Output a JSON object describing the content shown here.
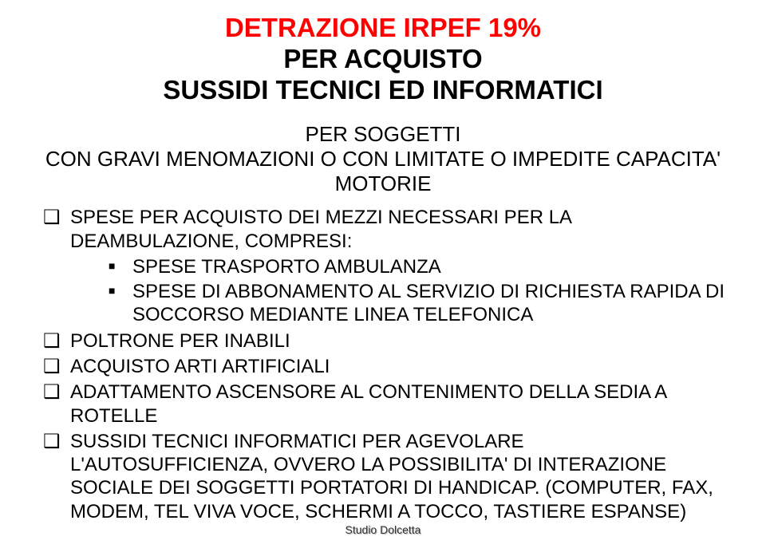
{
  "colors": {
    "red": "#ff0000",
    "black": "#000000",
    "footer_shadow": "#b9b9b9",
    "footer_front": "#333333",
    "background": "#ffffff"
  },
  "title": {
    "line1": "DETRAZIONE IRPEF 19%",
    "line2": "PER ACQUISTO",
    "line3": "SUSSIDI  TECNICI ED INFORMATICI"
  },
  "subtitle": {
    "line1": "PER SOGGETTI",
    "line2": "CON GRAVI MENOMAZIONI O CON LIMITATE O IMPEDITE CAPACITA' MOTORIE"
  },
  "bullets": {
    "b1": "SPESE PER ACQUISTO DEI MEZZI NECESSARI PER LA DEAMBULAZIONE, COMPRESI:",
    "b1a": "SPESE TRASPORTO AMBULANZA",
    "b1b": "SPESE DI ABBONAMENTO AL SERVIZIO DI RICHIESTA RAPIDA DI SOCCORSO MEDIANTE LINEA TELEFONICA",
    "b2": "POLTRONE PER INABILI",
    "b3": "ACQUISTO ARTI ARTIFICIALI",
    "b4": "ADATTAMENTO ASCENSORE AL CONTENIMENTO DELLA SEDIA A ROTELLE",
    "b5": "SUSSIDI TECNICI INFORMATICI PER AGEVOLARE L'AUTOSUFFICIENZA, OVVERO LA POSSIBILITA' DI INTERAZIONE SOCIALE DEI SOGGETTI PORTATORI DI HANDICAP. (COMPUTER, FAX, MODEM, TEL VIVA VOCE, SCHERMI A TOCCO, TASTIERE ESPANSE)"
  },
  "footer": "Studio Dolcetta"
}
